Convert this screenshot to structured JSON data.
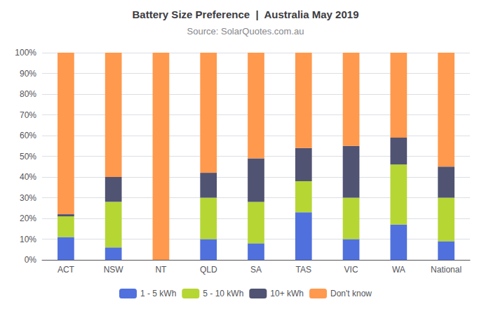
{
  "chart_data": {
    "type": "bar",
    "stacked": true,
    "title": "Battery Size Preference  |  Australia May 2019",
    "subtitle": "Source: SolarQuotes.com.au",
    "categories": [
      "ACT",
      "NSW",
      "NT",
      "QLD",
      "SA",
      "TAS",
      "VIC",
      "WA",
      "National"
    ],
    "series": [
      {
        "name": "1 - 5 kWh",
        "values": [
          11,
          6,
          0,
          10,
          8,
          23,
          10,
          17,
          9
        ]
      },
      {
        "name": "5 - 10 kWh",
        "values": [
          10,
          22,
          0,
          20,
          20,
          15,
          20,
          29,
          21
        ]
      },
      {
        "name": "10+ kWh",
        "values": [
          1,
          12,
          0,
          12,
          21,
          16,
          25,
          13,
          15
        ]
      },
      {
        "name": "Don't know",
        "values": [
          78,
          60,
          100,
          58,
          51,
          46,
          45,
          41,
          55
        ]
      }
    ],
    "ylim": [
      0,
      100
    ],
    "yticks": [
      {
        "value": 0,
        "label": "0%"
      },
      {
        "value": 10,
        "label": "10%"
      },
      {
        "value": 20,
        "label": "20%"
      },
      {
        "value": 30,
        "label": "30%"
      },
      {
        "value": 40,
        "label": "40%"
      },
      {
        "value": 50,
        "label": "50%"
      },
      {
        "value": 60,
        "label": "60%"
      },
      {
        "value": 70,
        "label": "70%"
      },
      {
        "value": 80,
        "label": "80%"
      },
      {
        "value": 90,
        "label": "90%"
      },
      {
        "value": 100,
        "label": "100%"
      }
    ],
    "grid": true,
    "legend": "bottom"
  }
}
